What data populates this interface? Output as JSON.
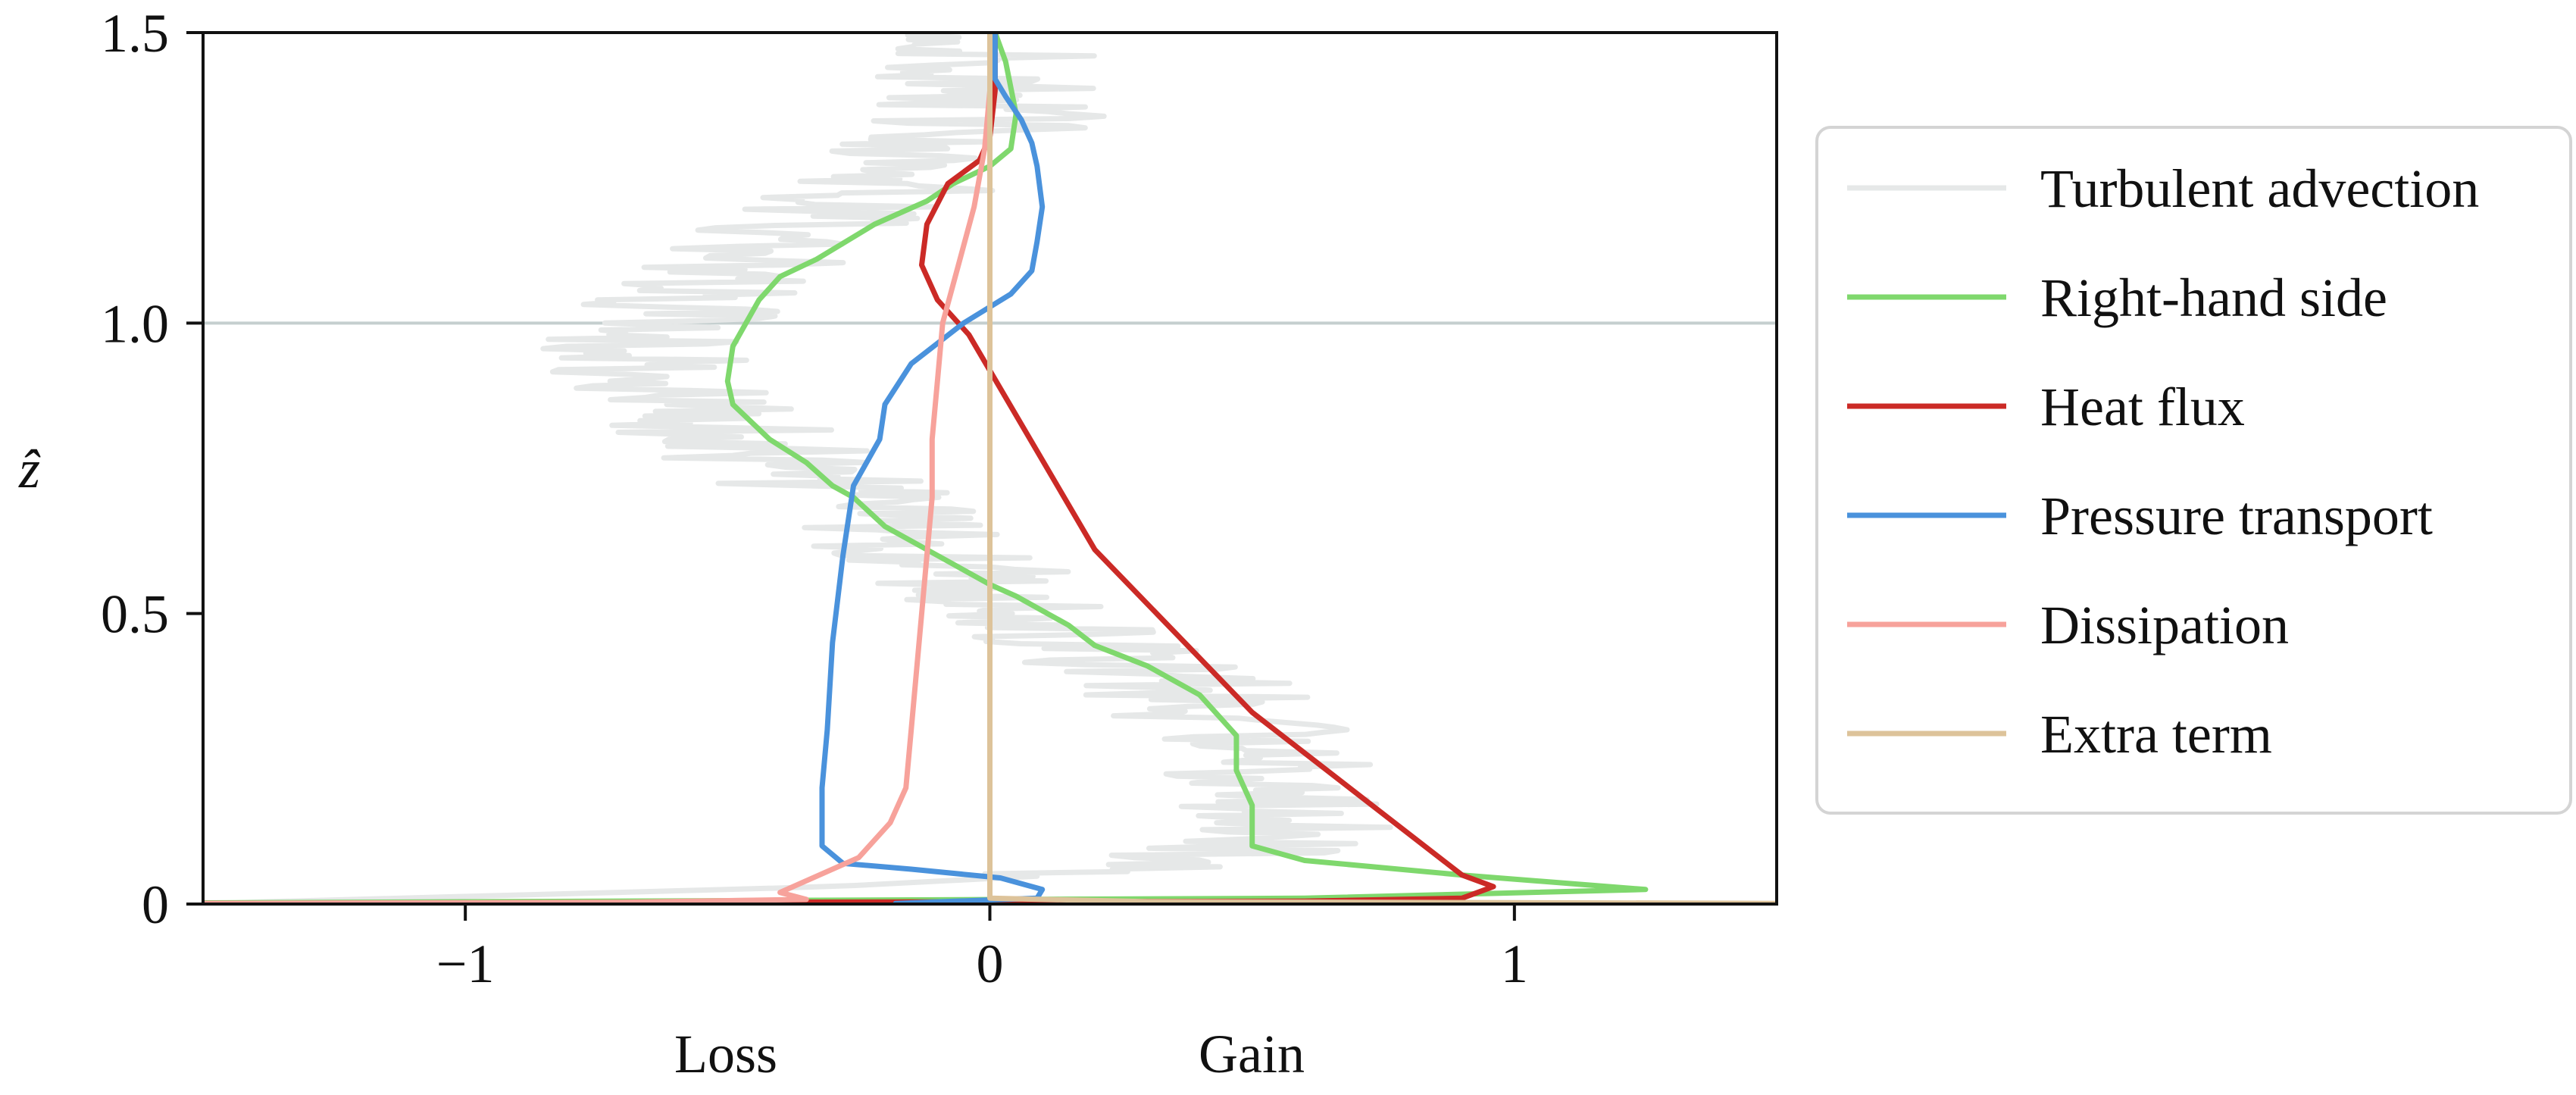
{
  "chart_data": {
    "type": "line",
    "orientation": "profile",
    "ylabel": "ẑ",
    "xlabel_left": "Loss",
    "xlabel_right": "Gain",
    "xlim": [
      -1.5,
      1.5
    ],
    "ylim": [
      0,
      1.5
    ],
    "xticks": [
      {
        "value": -1,
        "label": "−1"
      },
      {
        "value": 0,
        "label": "0"
      },
      {
        "value": 1,
        "label": "1"
      }
    ],
    "yticks": [
      {
        "value": 0,
        "label": "0"
      },
      {
        "value": 0.5,
        "label": "0.5"
      },
      {
        "value": 1.0,
        "label": "1.0"
      },
      {
        "value": 1.5,
        "label": "1.5"
      }
    ],
    "reference_lines": [
      {
        "axis": "y",
        "value": 1.0,
        "color": "#c5cfcf"
      }
    ],
    "legend_position": "outside-right",
    "series": [
      {
        "name": "Turbulent advection",
        "color": "#e6e8e8",
        "width": 7,
        "noisy": true,
        "points": [
          [
            -1.5,
            0.001
          ],
          [
            -0.3,
            0.03
          ],
          [
            0.35,
            0.06
          ],
          [
            0.55,
            0.12
          ],
          [
            0.55,
            0.2
          ],
          [
            0.5,
            0.28
          ],
          [
            0.4,
            0.36
          ],
          [
            0.2,
            0.45
          ],
          [
            0.05,
            0.53
          ],
          [
            -0.1,
            0.6
          ],
          [
            -0.28,
            0.7
          ],
          [
            -0.45,
            0.78
          ],
          [
            -0.6,
            0.88
          ],
          [
            -0.65,
            0.95
          ],
          [
            -0.58,
            1.05
          ],
          [
            -0.4,
            1.15
          ],
          [
            -0.15,
            1.25
          ],
          [
            0.0,
            1.35
          ],
          [
            0.0,
            1.45
          ],
          [
            0.02,
            1.5
          ]
        ]
      },
      {
        "name": "Right-hand side",
        "color": "#7fd86d",
        "width": 7,
        "points": [
          [
            -1.5,
            0.002
          ],
          [
            0.6,
            0.01
          ],
          [
            1.25,
            0.025
          ],
          [
            0.9,
            0.05
          ],
          [
            0.6,
            0.075
          ],
          [
            0.5,
            0.1
          ],
          [
            0.5,
            0.17
          ],
          [
            0.47,
            0.23
          ],
          [
            0.47,
            0.29
          ],
          [
            0.4,
            0.36
          ],
          [
            0.3,
            0.41
          ],
          [
            0.2,
            0.445
          ],
          [
            0.15,
            0.48
          ],
          [
            0.05,
            0.53
          ],
          [
            0.0,
            0.55
          ],
          [
            -0.1,
            0.6
          ],
          [
            -0.2,
            0.65
          ],
          [
            -0.26,
            0.7
          ],
          [
            -0.3,
            0.72
          ],
          [
            -0.35,
            0.76
          ],
          [
            -0.42,
            0.8
          ],
          [
            -0.49,
            0.86
          ],
          [
            -0.5,
            0.9
          ],
          [
            -0.49,
            0.96
          ],
          [
            -0.44,
            1.04
          ],
          [
            -0.4,
            1.08
          ],
          [
            -0.33,
            1.11
          ],
          [
            -0.22,
            1.17
          ],
          [
            -0.12,
            1.21
          ],
          [
            -0.07,
            1.24
          ],
          [
            0.0,
            1.27
          ],
          [
            0.04,
            1.3
          ],
          [
            0.05,
            1.36
          ],
          [
            0.03,
            1.45
          ],
          [
            0.01,
            1.5
          ]
        ]
      },
      {
        "name": "Heat flux",
        "color": "#cb2a26",
        "width": 7,
        "points": [
          [
            -1.5,
            0.001
          ],
          [
            0.6,
            0.005
          ],
          [
            0.9,
            0.01
          ],
          [
            0.96,
            0.03
          ],
          [
            0.9,
            0.05
          ],
          [
            0.5,
            0.33
          ],
          [
            0.2,
            0.61
          ],
          [
            -0.04,
            0.98
          ],
          [
            -0.1,
            1.04
          ],
          [
            -0.13,
            1.1
          ],
          [
            -0.12,
            1.17
          ],
          [
            -0.08,
            1.24
          ],
          [
            -0.02,
            1.28
          ],
          [
            0.0,
            1.32
          ],
          [
            0.01,
            1.4
          ],
          [
            0.01,
            1.5
          ]
        ]
      },
      {
        "name": "Pressure transport",
        "color": "#4a92dc",
        "width": 7,
        "points": [
          [
            -0.18,
            0.001
          ],
          [
            0.09,
            0.01
          ],
          [
            0.1,
            0.025
          ],
          [
            0.02,
            0.045
          ],
          [
            -0.15,
            0.06
          ],
          [
            -0.28,
            0.07
          ],
          [
            -0.32,
            0.1
          ],
          [
            -0.32,
            0.2
          ],
          [
            -0.31,
            0.3
          ],
          [
            -0.3,
            0.45
          ],
          [
            -0.28,
            0.6
          ],
          [
            -0.26,
            0.72
          ],
          [
            -0.21,
            0.8
          ],
          [
            -0.2,
            0.86
          ],
          [
            -0.15,
            0.93
          ],
          [
            -0.05,
            1.0
          ],
          [
            0.04,
            1.05
          ],
          [
            0.08,
            1.09
          ],
          [
            0.09,
            1.14
          ],
          [
            0.1,
            1.2
          ],
          [
            0.09,
            1.27
          ],
          [
            0.08,
            1.31
          ],
          [
            0.06,
            1.35
          ],
          [
            0.03,
            1.39
          ],
          [
            0.01,
            1.42
          ],
          [
            0.01,
            1.5
          ]
        ]
      },
      {
        "name": "Dissipation",
        "color": "#f7a29b",
        "width": 7,
        "points": [
          [
            -1.5,
            0.001
          ],
          [
            -0.7,
            0.003
          ],
          [
            -0.35,
            0.008
          ],
          [
            -0.4,
            0.02
          ],
          [
            -0.35,
            0.04
          ],
          [
            -0.25,
            0.08
          ],
          [
            -0.19,
            0.14
          ],
          [
            -0.16,
            0.2
          ],
          [
            -0.15,
            0.3
          ],
          [
            -0.14,
            0.4
          ],
          [
            -0.13,
            0.5
          ],
          [
            -0.12,
            0.6
          ],
          [
            -0.11,
            0.7
          ],
          [
            -0.11,
            0.8
          ],
          [
            -0.1,
            0.9
          ],
          [
            -0.09,
            1.0
          ],
          [
            -0.06,
            1.1
          ],
          [
            -0.03,
            1.2
          ],
          [
            -0.01,
            1.3
          ],
          [
            0.0,
            1.4
          ],
          [
            0.0,
            1.5
          ]
        ]
      },
      {
        "name": "Extra term",
        "color": "#ddc39a",
        "width": 7,
        "points": [
          [
            1.5,
            0.001
          ],
          [
            0.3,
            0.004
          ],
          [
            0.0,
            0.01
          ],
          [
            0.0,
            1.5
          ]
        ]
      }
    ]
  }
}
